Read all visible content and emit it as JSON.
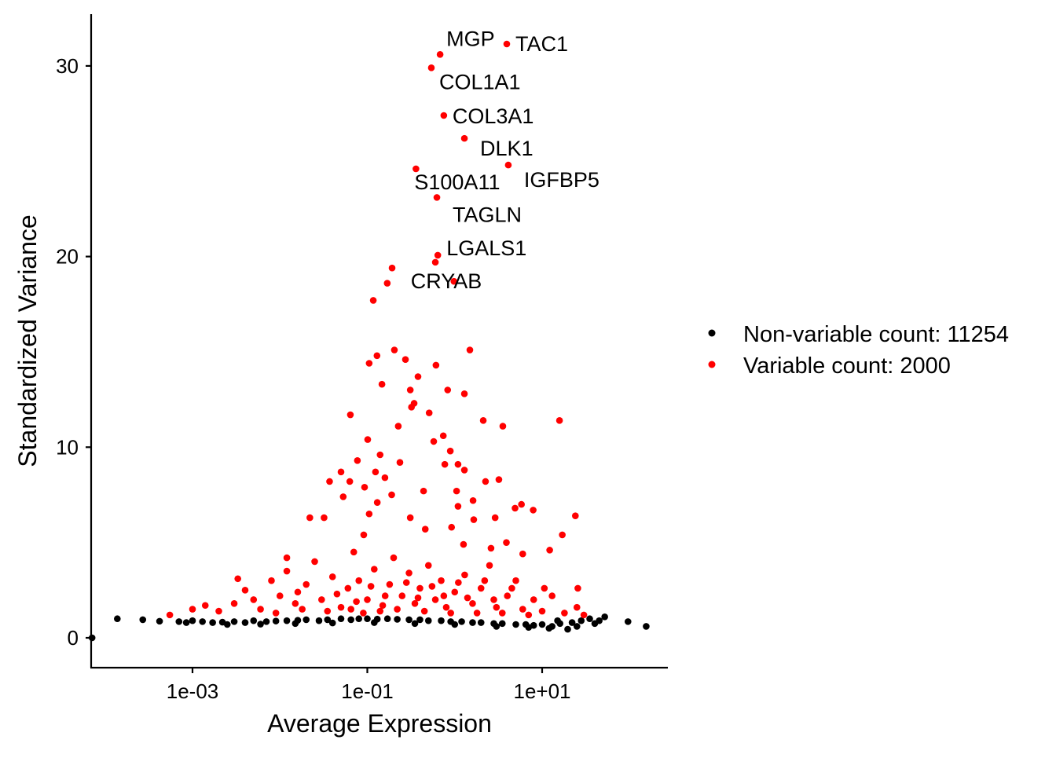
{
  "chart_data": {
    "type": "scatter",
    "title": "",
    "xlabel": "Average Expression",
    "ylabel": "Standardized Variance",
    "x_scale": "log10",
    "xlim": [
      7e-05,
      275
    ],
    "ylim": [
      -1.5,
      32.7
    ],
    "x_ticks": [
      {
        "value": 0.001,
        "label": "1e-03"
      },
      {
        "value": 0.1,
        "label": "1e-01"
      },
      {
        "value": 10,
        "label": "1e+01"
      }
    ],
    "y_ticks": [
      {
        "value": 0,
        "label": "0"
      },
      {
        "value": 10,
        "label": "10"
      },
      {
        "value": 20,
        "label": "20"
      },
      {
        "value": 30,
        "label": "30"
      }
    ],
    "grid": false,
    "legend_position": "right",
    "series": [
      {
        "name": "Non-variable count: 11254",
        "color": "#000000",
        "points": [
          [
            7.1e-05,
            0.0
          ],
          [
            0.000138,
            1.0
          ],
          [
            0.00027,
            0.95
          ],
          [
            0.00042,
            0.87
          ],
          [
            0.0007,
            0.85
          ],
          [
            0.00085,
            0.8
          ],
          [
            0.001,
            0.9
          ],
          [
            0.0013,
            0.85
          ],
          [
            0.0017,
            0.8
          ],
          [
            0.0022,
            0.82
          ],
          [
            0.003,
            0.85
          ],
          [
            0.004,
            0.8
          ],
          [
            0.005,
            0.9
          ],
          [
            0.007,
            0.85
          ],
          [
            0.009,
            0.88
          ],
          [
            0.012,
            0.9
          ],
          [
            0.016,
            0.92
          ],
          [
            0.02,
            0.95
          ],
          [
            0.028,
            0.9
          ],
          [
            0.035,
            0.95
          ],
          [
            0.05,
            1.0
          ],
          [
            0.065,
            0.95
          ],
          [
            0.08,
            1.0
          ],
          [
            0.1,
            1.0
          ],
          [
            0.13,
            0.98
          ],
          [
            0.17,
            1.0
          ],
          [
            0.22,
            0.97
          ],
          [
            0.3,
            0.95
          ],
          [
            0.4,
            0.95
          ],
          [
            0.5,
            0.9
          ],
          [
            0.7,
            0.9
          ],
          [
            0.9,
            0.85
          ],
          [
            1.2,
            0.85
          ],
          [
            1.6,
            0.8
          ],
          [
            2.0,
            0.8
          ],
          [
            2.8,
            0.75
          ],
          [
            3.5,
            0.75
          ],
          [
            5,
            0.7
          ],
          [
            6.5,
            0.7
          ],
          [
            8,
            0.65
          ],
          [
            10,
            0.7
          ],
          [
            13,
            0.6
          ],
          [
            16,
            0.75
          ],
          [
            19.6,
            0.45
          ],
          [
            22,
            0.8
          ],
          [
            28,
            0.9
          ],
          [
            35,
            1.0
          ],
          [
            45,
            0.9
          ],
          [
            52,
            1.1
          ],
          [
            96,
            0.85
          ],
          [
            155,
            0.6
          ],
          [
            0.0025,
            0.7
          ],
          [
            0.006,
            0.72
          ],
          [
            0.015,
            0.75
          ],
          [
            0.04,
            0.78
          ],
          [
            0.12,
            0.8
          ],
          [
            0.35,
            0.75
          ],
          [
            1.0,
            0.7
          ],
          [
            3,
            0.6
          ],
          [
            7,
            0.55
          ],
          [
            12,
            0.5
          ],
          [
            15,
            0.9
          ],
          [
            25,
            0.6
          ],
          [
            40,
            0.75
          ]
        ]
      },
      {
        "name": "Variable count: 2000",
        "color": "#FF0000",
        "points": [
          [
            0.117,
            17.7
          ],
          [
            0.169,
            18.6
          ],
          [
            0.192,
            19.4
          ],
          [
            0.6,
            19.7
          ],
          [
            0.204,
            15.1
          ],
          [
            1.49,
            15.1
          ],
          [
            0.105,
            14.4
          ],
          [
            0.129,
            14.8
          ],
          [
            0.273,
            14.6
          ],
          [
            0.61,
            14.3
          ],
          [
            0.38,
            13.7
          ],
          [
            0.147,
            13.3
          ],
          [
            0.31,
            13.0
          ],
          [
            0.83,
            13.0
          ],
          [
            1.29,
            12.8
          ],
          [
            0.343,
            12.3
          ],
          [
            0.32,
            12.1
          ],
          [
            0.51,
            11.8
          ],
          [
            0.064,
            11.7
          ],
          [
            15.8,
            11.4
          ],
          [
            2.12,
            11.4
          ],
          [
            3.55,
            11.1
          ],
          [
            0.226,
            11.1
          ],
          [
            0.74,
            10.6
          ],
          [
            0.101,
            10.4
          ],
          [
            0.575,
            10.3
          ],
          [
            0.89,
            9.8
          ],
          [
            0.14,
            9.6
          ],
          [
            0.077,
            9.3
          ],
          [
            1.09,
            9.1
          ],
          [
            0.77,
            9.1
          ],
          [
            1.29,
            8.8
          ],
          [
            0.236,
            9.2
          ],
          [
            0.124,
            8.7
          ],
          [
            0.05,
            8.7
          ],
          [
            0.063,
            8.2
          ],
          [
            3.2,
            8.3
          ],
          [
            2.25,
            8.2
          ],
          [
            0.159,
            8.4
          ],
          [
            0.037,
            8.2
          ],
          [
            0.093,
            7.9
          ],
          [
            1.05,
            7.7
          ],
          [
            0.44,
            7.7
          ],
          [
            0.19,
            7.5
          ],
          [
            1.62,
            7.2
          ],
          [
            0.13,
            7.1
          ],
          [
            0.053,
            7.4
          ],
          [
            1.09,
            6.9
          ],
          [
            5.8,
            7.0
          ],
          [
            7.9,
            6.7
          ],
          [
            4.9,
            6.8
          ],
          [
            0.105,
            6.5
          ],
          [
            0.31,
            6.3
          ],
          [
            0.032,
            6.3
          ],
          [
            0.022,
            6.3
          ],
          [
            1.65,
            6.2
          ],
          [
            2.9,
            6.3
          ],
          [
            24,
            6.4
          ],
          [
            0.92,
            5.8
          ],
          [
            0.46,
            5.7
          ],
          [
            0.091,
            5.4
          ],
          [
            17,
            5.4
          ],
          [
            12.2,
            4.6
          ],
          [
            3.9,
            5.0
          ],
          [
            2.6,
            4.7
          ],
          [
            1.26,
            4.9
          ],
          [
            0.012,
            4.2
          ],
          [
            6.0,
            4.4
          ],
          [
            10.6,
            2.6
          ],
          [
            25.6,
            2.6
          ],
          [
            0.0033,
            3.1
          ],
          [
            0.00055,
            1.2
          ],
          [
            0.001,
            1.5
          ],
          [
            0.0014,
            1.7
          ],
          [
            0.002,
            1.4
          ],
          [
            0.003,
            1.8
          ],
          [
            0.004,
            2.5
          ],
          [
            0.005,
            2.0
          ],
          [
            0.006,
            1.5
          ],
          [
            0.008,
            3.0
          ],
          [
            0.01,
            2.2
          ],
          [
            0.012,
            3.5
          ],
          [
            0.015,
            1.8
          ],
          [
            0.02,
            2.8
          ],
          [
            0.025,
            4.0
          ],
          [
            0.03,
            2.0
          ],
          [
            0.04,
            3.2
          ],
          [
            0.05,
            1.6
          ],
          [
            0.06,
            2.6
          ],
          [
            0.07,
            4.5
          ],
          [
            0.08,
            3.0
          ],
          [
            0.1,
            2.0
          ],
          [
            0.12,
            3.6
          ],
          [
            0.15,
            1.7
          ],
          [
            0.18,
            2.8
          ],
          [
            0.2,
            4.2
          ],
          [
            0.25,
            2.2
          ],
          [
            0.3,
            3.4
          ],
          [
            0.35,
            1.8
          ],
          [
            0.4,
            2.6
          ],
          [
            0.5,
            3.8
          ],
          [
            0.6,
            2.0
          ],
          [
            0.7,
            3.0
          ],
          [
            0.8,
            1.6
          ],
          [
            1.0,
            2.4
          ],
          [
            1.3,
            3.3
          ],
          [
            1.6,
            1.8
          ],
          [
            2.0,
            2.6
          ],
          [
            2.5,
            3.8
          ],
          [
            3.0,
            1.6
          ],
          [
            4.0,
            2.2
          ],
          [
            5.0,
            3.0
          ],
          [
            6.0,
            1.5
          ],
          [
            8.0,
            2.0
          ],
          [
            10,
            1.4
          ],
          [
            13,
            2.2
          ],
          [
            18,
            1.3
          ],
          [
            25,
            1.6
          ],
          [
            30,
            1.2
          ],
          [
            0.009,
            1.3
          ],
          [
            0.018,
            1.5
          ],
          [
            0.035,
            1.4
          ],
          [
            0.065,
            1.5
          ],
          [
            0.09,
            1.3
          ],
          [
            0.14,
            1.4
          ],
          [
            0.22,
            1.5
          ],
          [
            0.45,
            1.4
          ],
          [
            0.9,
            1.3
          ],
          [
            1.8,
            1.3
          ],
          [
            3.5,
            1.3
          ],
          [
            7,
            1.2
          ],
          [
            0.016,
            2.4
          ],
          [
            0.045,
            2.3
          ],
          [
            0.11,
            2.7
          ],
          [
            0.28,
            2.9
          ],
          [
            0.55,
            2.7
          ],
          [
            1.1,
            2.9
          ],
          [
            2.2,
            3.0
          ],
          [
            4.5,
            2.6
          ],
          [
            0.075,
            1.9
          ],
          [
            0.16,
            2.2
          ],
          [
            0.38,
            2.1
          ],
          [
            0.75,
            2.2
          ],
          [
            1.4,
            2.1
          ],
          [
            2.8,
            2.0
          ]
        ]
      }
    ],
    "labeled_points": [
      {
        "label": "MGP",
        "x": 0.68,
        "y": 30.6
      },
      {
        "label": "TAC1",
        "x": 3.94,
        "y": 31.15
      },
      {
        "label": "COL1A1",
        "x": 0.54,
        "y": 29.9
      },
      {
        "label": "COL3A1",
        "x": 0.75,
        "y": 27.4
      },
      {
        "label": "DLK1",
        "x": 1.29,
        "y": 26.2
      },
      {
        "label": "IGFBP5",
        "x": 4.1,
        "y": 24.8
      },
      {
        "label": "S100A11",
        "x": 0.36,
        "y": 24.6
      },
      {
        "label": "TAGLN",
        "x": 0.625,
        "y": 23.1
      },
      {
        "label": "LGALS1",
        "x": 0.64,
        "y": 20.07
      },
      {
        "label": "CRYAB",
        "x": 0.98,
        "y": 18.7
      }
    ]
  }
}
